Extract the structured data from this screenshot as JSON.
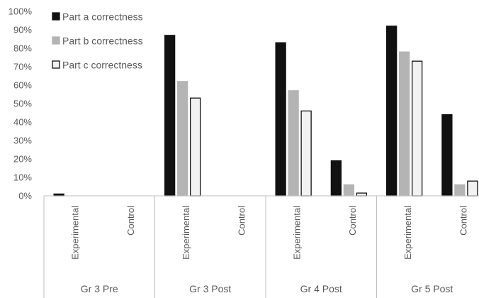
{
  "chart_data": {
    "type": "bar",
    "ylim": [
      0,
      100
    ],
    "y_ticks": [
      "0%",
      "10%",
      "20%",
      "30%",
      "40%",
      "50%",
      "60%",
      "70%",
      "80%",
      "90%",
      "100%"
    ],
    "groups": [
      {
        "label": "Gr 3 Pre",
        "categories": [
          "Experimental",
          "Control"
        ]
      },
      {
        "label": "Gr 3 Post",
        "categories": [
          "Experimental",
          "Control"
        ]
      },
      {
        "label": "Gr 4 Post",
        "categories": [
          "Experimental",
          "Control"
        ]
      },
      {
        "label": "Gr 5 Post",
        "categories": [
          "Experimental",
          "Control"
        ]
      }
    ],
    "categories": [
      "Gr 3 Pre Experimental",
      "Gr 3 Pre Control",
      "Gr 3 Post Experimental",
      "Gr 3 Post Control",
      "Gr 4 Post Experimental",
      "Gr 4 Post Control",
      "Gr 5 Post Experimental",
      "Gr 5 Post Control"
    ],
    "series": [
      {
        "name": "Part a correctness",
        "color": "#111111",
        "stroke": "#111111",
        "values": [
          1,
          0,
          87,
          0,
          83,
          19,
          92,
          44
        ]
      },
      {
        "name": "Part b correctness",
        "color": "#b4b4b4",
        "stroke": "#b4b4b4",
        "values": [
          0,
          0,
          62,
          0,
          57,
          6,
          78,
          6
        ]
      },
      {
        "name": "Part c correctness",
        "color": "#f2f2f2",
        "stroke": "#111111",
        "values": [
          0,
          0,
          53,
          0,
          46,
          1.5,
          73,
          8
        ]
      }
    ],
    "legend_position": "top-left",
    "grid": false
  }
}
